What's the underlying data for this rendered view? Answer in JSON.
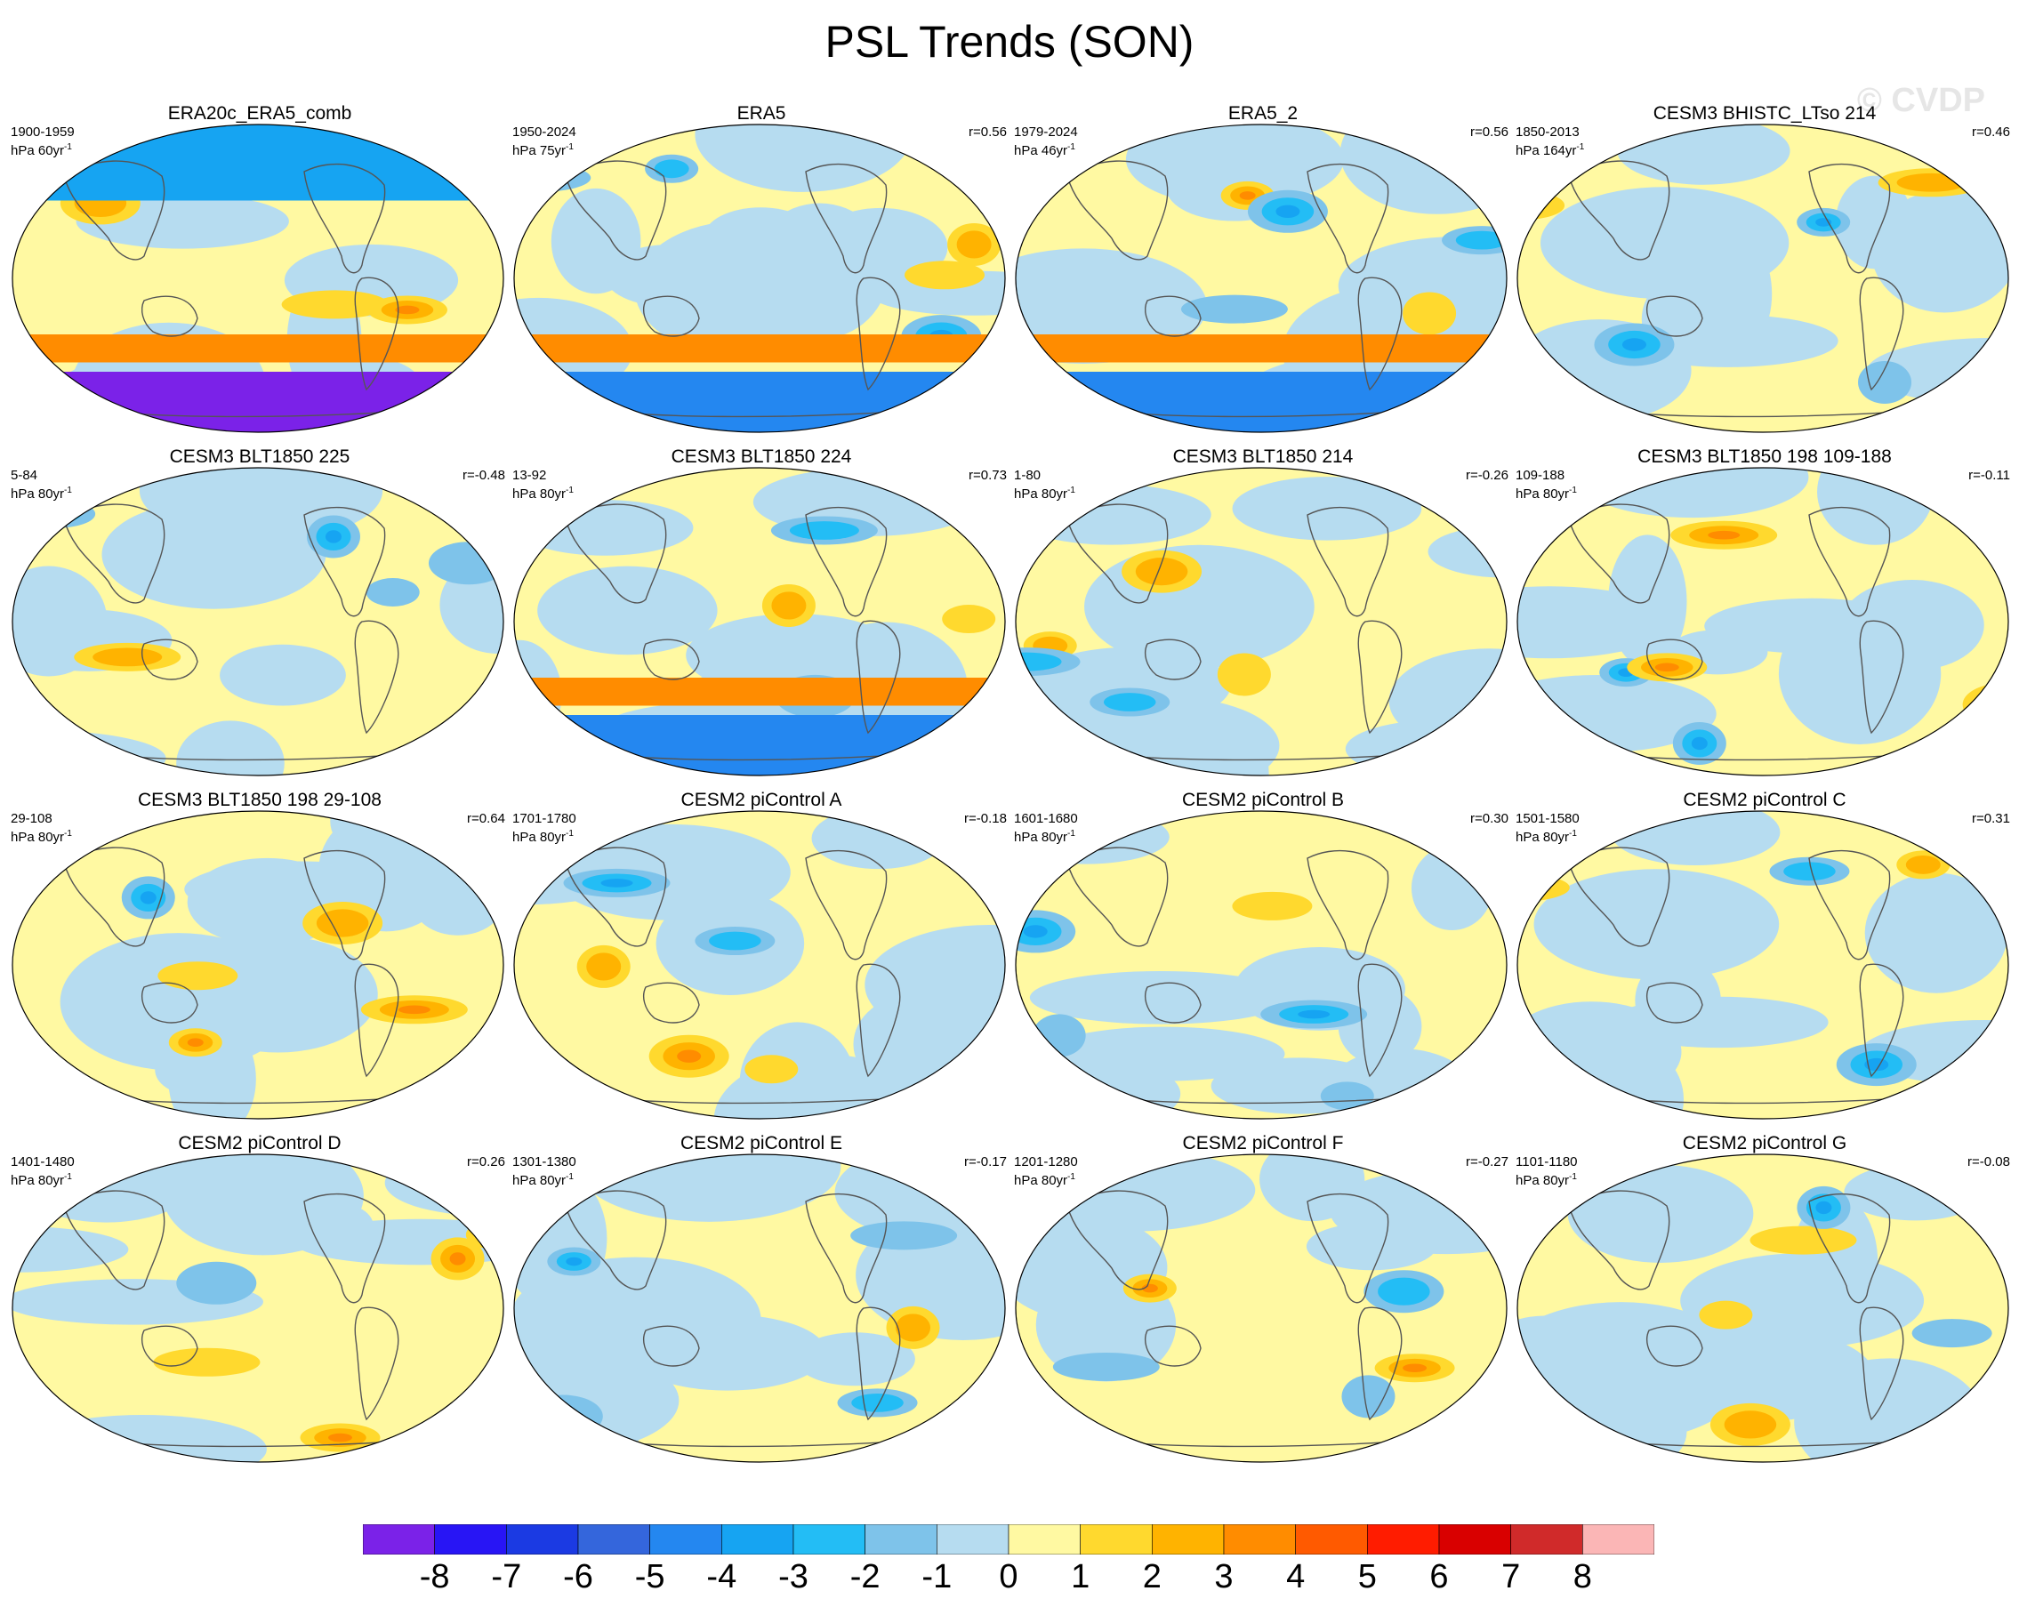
{
  "title": "PSL Trends (SON)",
  "watermark": "© CVDP",
  "colorbar": {
    "colors": [
      "#7b22e8",
      "#2815f5",
      "#1b3ae3",
      "#3466dc",
      "#2487f0",
      "#16a4f2",
      "#23bdf5",
      "#7ec3ea",
      "#b6dcf0",
      "#fff9a2",
      "#ffd92e",
      "#ffb300",
      "#ff8c00",
      "#ff5a00",
      "#ff1c00",
      "#d90000",
      "#d02a2a",
      "#fbb6b6"
    ],
    "labels": [
      "-8",
      "-7",
      "-6",
      "-5",
      "-4",
      "-3",
      "-2",
      "-1",
      "0",
      "1",
      "2",
      "3",
      "4",
      "5",
      "6",
      "7",
      "8"
    ]
  },
  "panels": [
    {
      "title": "ERA20c_ERA5_comb",
      "period": "1900-1959",
      "units": "hPa 60yr",
      "units_sup": "-1",
      "r": ""
    },
    {
      "title": "ERA5",
      "period": "1950-2024",
      "units": "hPa 75yr",
      "units_sup": "-1",
      "r": "r=0.56"
    },
    {
      "title": "ERA5_2",
      "period": "1979-2024",
      "units": "hPa 46yr",
      "units_sup": "-1",
      "r": "r=0.56"
    },
    {
      "title": "CESM3 BHISTC_LTso 214",
      "period": "1850-2013",
      "units": "hPa 164yr",
      "units_sup": "-1",
      "r": "r=0.46"
    },
    {
      "title": "CESM3 BLT1850 225",
      "period": "5-84",
      "units": "hPa 80yr",
      "units_sup": "-1",
      "r": "r=-0.48"
    },
    {
      "title": "CESM3 BLT1850 224",
      "period": "13-92",
      "units": "hPa 80yr",
      "units_sup": "-1",
      "r": "r=0.73"
    },
    {
      "title": "CESM3 BLT1850 214",
      "period": "1-80",
      "units": "hPa 80yr",
      "units_sup": "-1",
      "r": "r=-0.26"
    },
    {
      "title": "CESM3 BLT1850 198 109-188",
      "period": "109-188",
      "units": "hPa 80yr",
      "units_sup": "-1",
      "r": "r=-0.11"
    },
    {
      "title": "CESM3 BLT1850 198 29-108",
      "period": "29-108",
      "units": "hPa 80yr",
      "units_sup": "-1",
      "r": "r=0.64"
    },
    {
      "title": "CESM2 piControl A",
      "period": "1701-1780",
      "units": "hPa 80yr",
      "units_sup": "-1",
      "r": "r=-0.18"
    },
    {
      "title": "CESM2 piControl B",
      "period": "1601-1680",
      "units": "hPa 80yr",
      "units_sup": "-1",
      "r": "r=0.30"
    },
    {
      "title": "CESM2 piControl C",
      "period": "1501-1580",
      "units": "hPa 80yr",
      "units_sup": "-1",
      "r": "r=0.31"
    },
    {
      "title": "CESM2 piControl D",
      "period": "1401-1480",
      "units": "hPa 80yr",
      "units_sup": "-1",
      "r": "r=0.26"
    },
    {
      "title": "CESM2 piControl E",
      "period": "1301-1380",
      "units": "hPa 80yr",
      "units_sup": "-1",
      "r": "r=-0.17"
    },
    {
      "title": "CESM2 piControl F",
      "period": "1201-1280",
      "units": "hPa 80yr",
      "units_sup": "-1",
      "r": "r=-0.27"
    },
    {
      "title": "CESM2 piControl G",
      "period": "1101-1180",
      "units": "hPa 80yr",
      "units_sup": "-1",
      "r": "r=-0.08"
    }
  ]
}
